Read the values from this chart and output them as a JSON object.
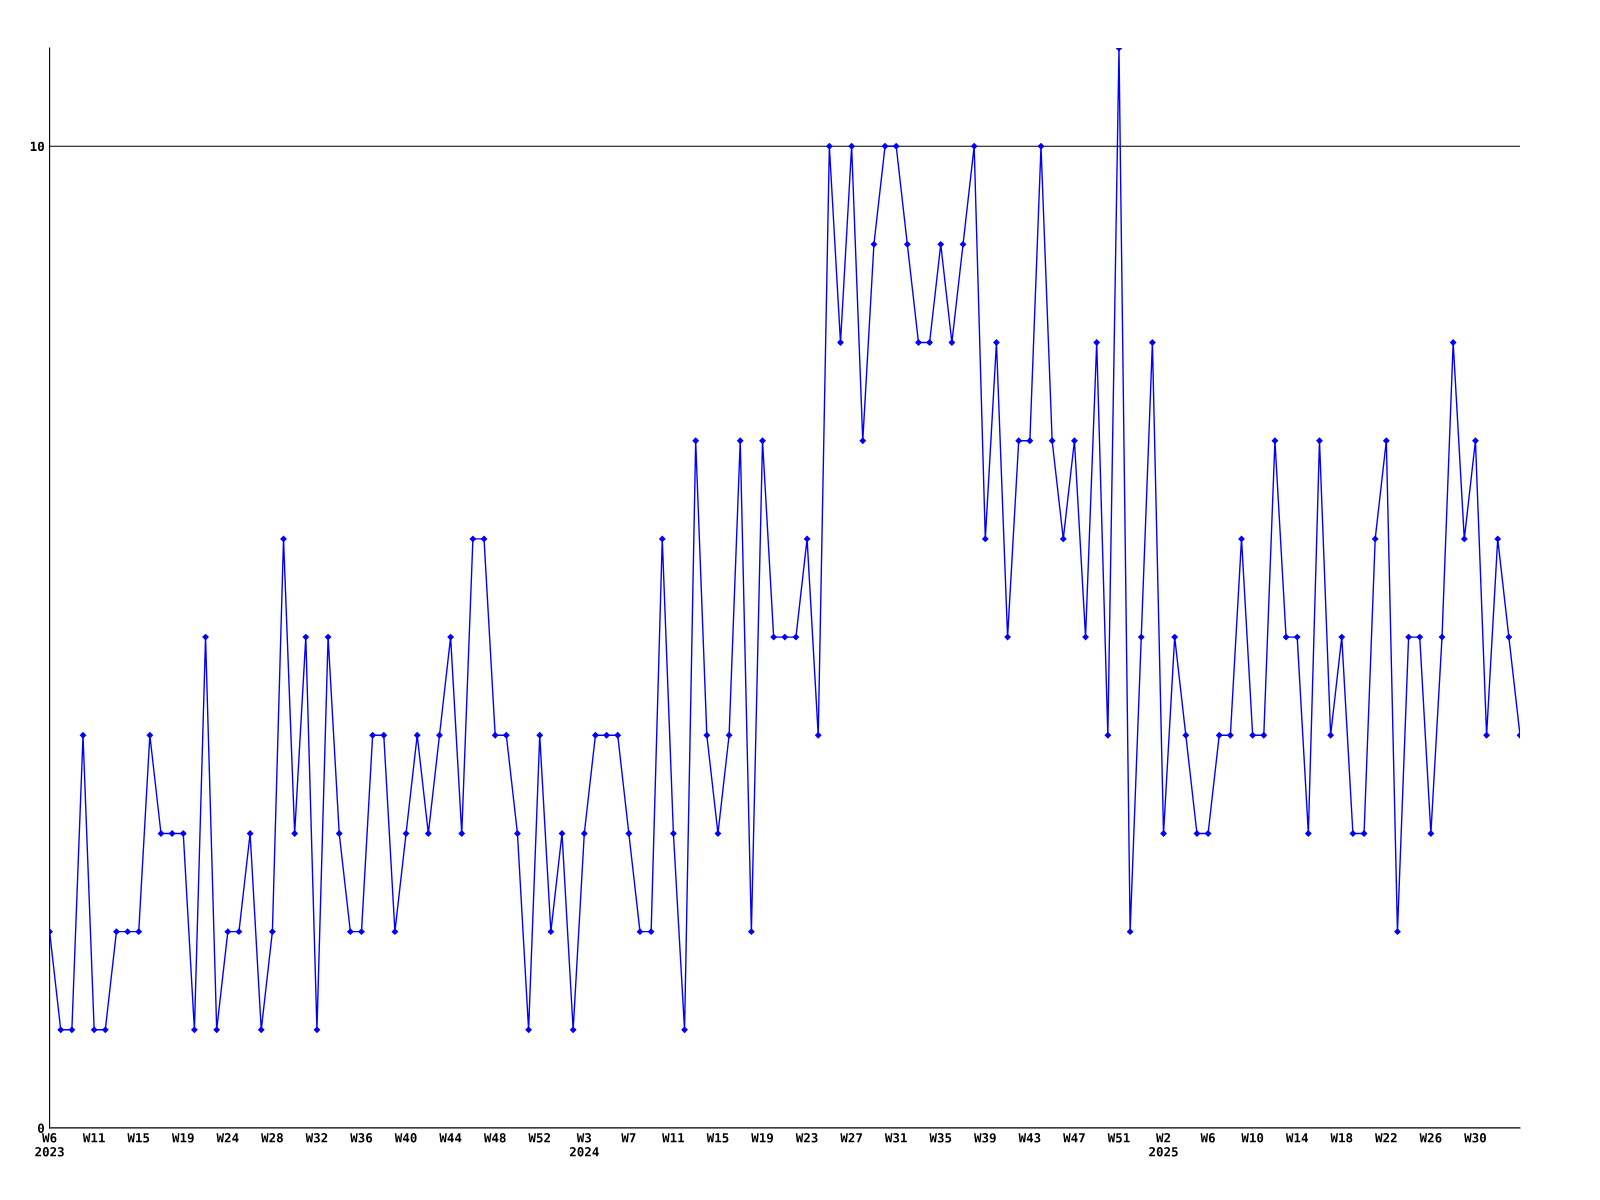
{
  "chart_data": {
    "type": "line",
    "categories": [
      "W6\n2023",
      null,
      null,
      null,
      "W11",
      null,
      null,
      null,
      "W15",
      null,
      null,
      null,
      "W19",
      null,
      null,
      null,
      "W24",
      null,
      null,
      null,
      "W28",
      null,
      null,
      null,
      "W32",
      null,
      null,
      null,
      "W36",
      null,
      null,
      null,
      "W40",
      null,
      null,
      null,
      "W44",
      null,
      null,
      null,
      "W48",
      null,
      null,
      null,
      "W52",
      null,
      null,
      null,
      "W3\n2024",
      null,
      null,
      null,
      "W7",
      null,
      null,
      null,
      "W11",
      null,
      null,
      null,
      "W15",
      null,
      null,
      null,
      "W19",
      null,
      null,
      null,
      "W23",
      null,
      null,
      null,
      "W27",
      null,
      null,
      null,
      "W31",
      null,
      null,
      null,
      "W35",
      null,
      null,
      null,
      "W39",
      null,
      null,
      null,
      "W43",
      null,
      null,
      null,
      "W47",
      null,
      null,
      null,
      "W51",
      null,
      null,
      null,
      "W2\n2025",
      null,
      null,
      null,
      "W6",
      null,
      null,
      null,
      "W10",
      null,
      null,
      null,
      "W14",
      null,
      null,
      null,
      "W18",
      null,
      null,
      null,
      "W22",
      null,
      null,
      null,
      "W26",
      null,
      null,
      null,
      "W30",
      null,
      null,
      null,
      null
    ],
    "series": [
      {
        "color": "#0000ff",
        "values": [
          2,
          1,
          1,
          4,
          1,
          1,
          2,
          2,
          2,
          4,
          3,
          3,
          3,
          1,
          5,
          1,
          2,
          2,
          3,
          1,
          2,
          6,
          3,
          5,
          1,
          5,
          3,
          2,
          2,
          4,
          4,
          2,
          3,
          4,
          3,
          4,
          5,
          3,
          6,
          6,
          4,
          4,
          3,
          1,
          4,
          2,
          3,
          1,
          3,
          4,
          4,
          4,
          3,
          2,
          2,
          6,
          3,
          1,
          7,
          4,
          3,
          4,
          7,
          2,
          7,
          5,
          5,
          5,
          6,
          4,
          10,
          8,
          10,
          7,
          9,
          10,
          10,
          9,
          8,
          8,
          9,
          8,
          9,
          10,
          6,
          8,
          5,
          7,
          7,
          10,
          7,
          6,
          7,
          5,
          8,
          4,
          11,
          2,
          5,
          8,
          3,
          5,
          4,
          3,
          3,
          4,
          4,
          6,
          4,
          4,
          7,
          5,
          5,
          3,
          7,
          4,
          5,
          3,
          3,
          6,
          7,
          2,
          5,
          5,
          3,
          5,
          8,
          6,
          7,
          4,
          6,
          5,
          4
        ]
      }
    ],
    "ylim": [
      0,
      11
    ],
    "yticks": [
      0,
      10
    ],
    "grid": "y",
    "marker": "diamond",
    "line_style": "solid",
    "legend": false
  }
}
